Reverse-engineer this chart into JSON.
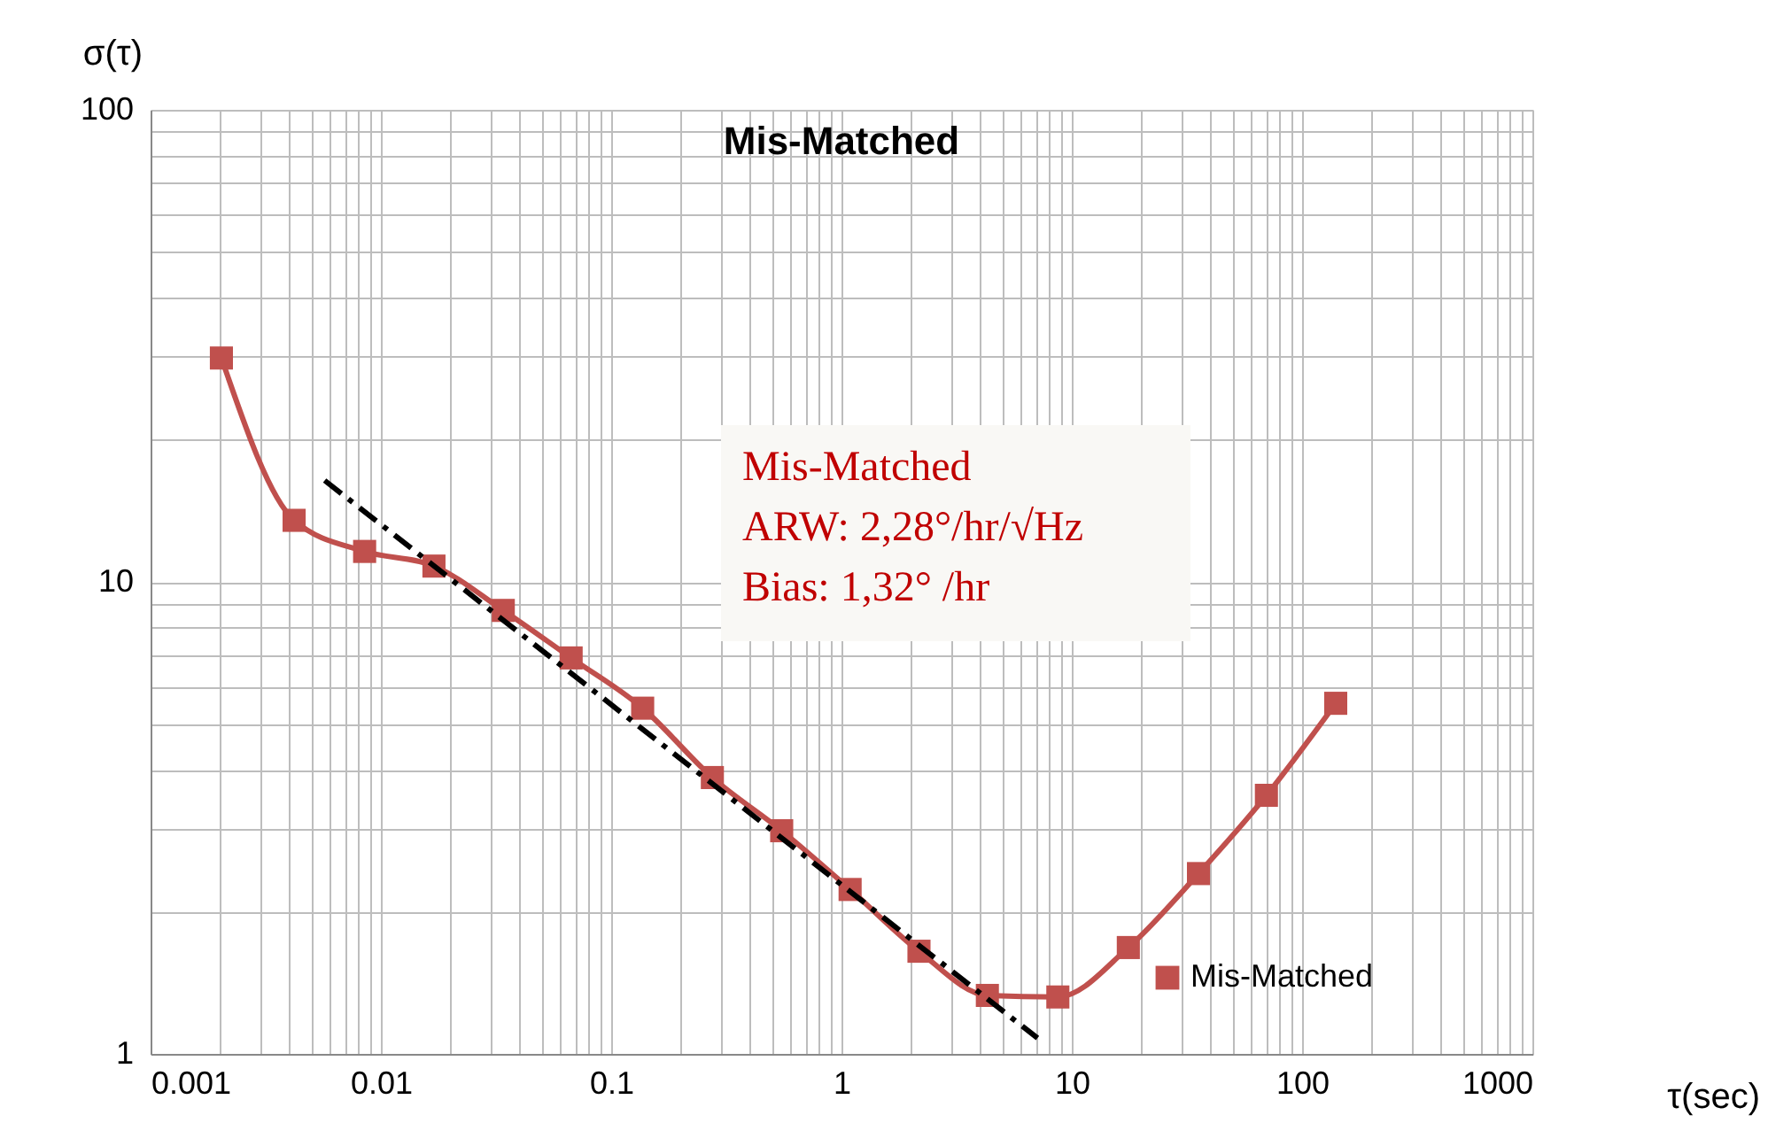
{
  "chart_data": {
    "type": "line",
    "title": "Mis-Matched",
    "xlabel": "τ(sec)",
    "ylabel": "σ(τ)",
    "log": "xy",
    "xlim": [
      0.001,
      1000
    ],
    "ylim": [
      1,
      100
    ],
    "xticks": [
      0.001,
      0.01,
      0.1,
      1,
      10,
      100,
      1000
    ],
    "yticks": [
      1,
      10,
      100
    ],
    "grid": true,
    "legend": "bottom right",
    "marker": "square",
    "line_style": "solid",
    "annotations": [
      "Mis-Matched",
      "ARW: 2,28°/hr/√Hz",
      "Bias: 1,32° /hr"
    ],
    "series": [
      {
        "name": "Mis-Matched",
        "color": "#c0504d",
        "x": [
          0.00203,
          0.0042,
          0.0085,
          0.017,
          0.034,
          0.067,
          0.137,
          0.275,
          0.55,
          1.09,
          2.17,
          4.3,
          8.7,
          17.6,
          35.5,
          70,
          140
        ],
        "values": [
          29.8,
          13.5,
          11.6,
          10.8,
          8.7,
          6.9,
          5.4,
          3.85,
          2.97,
          2.23,
          1.65,
          1.33,
          1.32,
          1.68,
          2.41,
          3.53,
          5.53
        ]
      },
      {
        "type": "line",
        "color": "#000000",
        "line_style": "dashdot",
        "marker": "none",
        "x": [
          0.0057,
          7.1
        ],
        "values": [
          16.4,
          1.08
        ]
      }
    ]
  }
}
